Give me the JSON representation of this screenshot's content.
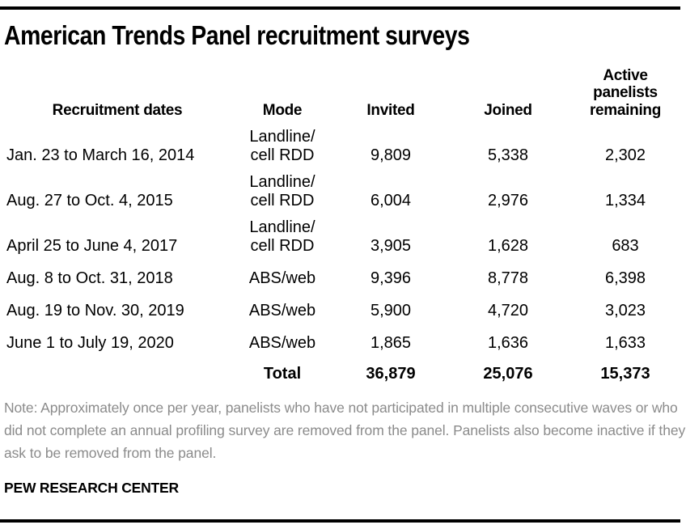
{
  "title": "American Trends Panel recruitment surveys",
  "table": {
    "headers": {
      "dates": "Recruitment dates",
      "mode": "Mode",
      "invited": "Invited",
      "joined": "Joined",
      "active": "Active panelists remaining"
    },
    "rows": [
      {
        "dates": "Jan. 23 to March 16, 2014",
        "mode_line1": "Landline/",
        "mode_line2": "cell RDD",
        "invited": "9,809",
        "joined": "5,338",
        "active": "2,302"
      },
      {
        "dates": "Aug. 27 to Oct. 4, 2015",
        "mode_line1": "Landline/",
        "mode_line2": "cell RDD",
        "invited": "6,004",
        "joined": "2,976",
        "active": "1,334"
      },
      {
        "dates": "April 25 to June 4, 2017",
        "mode_line1": "Landline/",
        "mode_line2": "cell RDD",
        "invited": "3,905",
        "joined": "1,628",
        "active": "683"
      },
      {
        "dates": "Aug. 8 to Oct. 31, 2018",
        "mode_line1": "ABS/web",
        "invited": "9,396",
        "joined": "8,778",
        "active": "6,398"
      },
      {
        "dates": "Aug. 19 to Nov. 30, 2019",
        "mode_line1": "ABS/web",
        "invited": "5,900",
        "joined": "4,720",
        "active": "3,023"
      },
      {
        "dates": "June 1 to July 19, 2020",
        "mode_line1": "ABS/web",
        "invited": "1,865",
        "joined": "1,636",
        "active": "1,633"
      }
    ],
    "total": {
      "label": "Total",
      "invited": "36,879",
      "joined": "25,076",
      "active": "15,373"
    }
  },
  "note": "Note: Approximately once per year, panelists who have not participated in multiple consecutive waves or who did not complete an annual profiling survey are removed from the panel. Panelists also become inactive if they ask to be removed from the panel.",
  "footer": "PEW RESEARCH CENTER",
  "colors": {
    "text": "#000000",
    "note_gray": "#8b8b8b",
    "rule_black": "#000000"
  },
  "chart_data": {
    "type": "table",
    "title": "American Trends Panel recruitment surveys",
    "columns": [
      "Recruitment dates",
      "Mode",
      "Invited",
      "Joined",
      "Active panelists remaining"
    ],
    "rows": [
      [
        "Jan. 23 to March 16, 2014",
        "Landline/cell RDD",
        9809,
        5338,
        2302
      ],
      [
        "Aug. 27 to Oct. 4, 2015",
        "Landline/cell RDD",
        6004,
        2976,
        1334
      ],
      [
        "April 25 to June 4, 2017",
        "Landline/cell RDD",
        3905,
        1628,
        683
      ],
      [
        "Aug. 8 to Oct. 31, 2018",
        "ABS/web",
        9396,
        8778,
        6398
      ],
      [
        "Aug. 19 to Nov. 30, 2019",
        "ABS/web",
        5900,
        4720,
        3023
      ],
      [
        "June 1 to July 19, 2020",
        "ABS/web",
        1865,
        1636,
        1633
      ]
    ],
    "total_row": [
      "",
      "Total",
      36879,
      25076,
      15373
    ],
    "note": "Approximately once per year, panelists who have not participated in multiple consecutive waves or who did not complete an annual profiling survey are removed from the panel. Panelists also become inactive if they ask to be removed from the panel.",
    "source": "PEW RESEARCH CENTER"
  }
}
